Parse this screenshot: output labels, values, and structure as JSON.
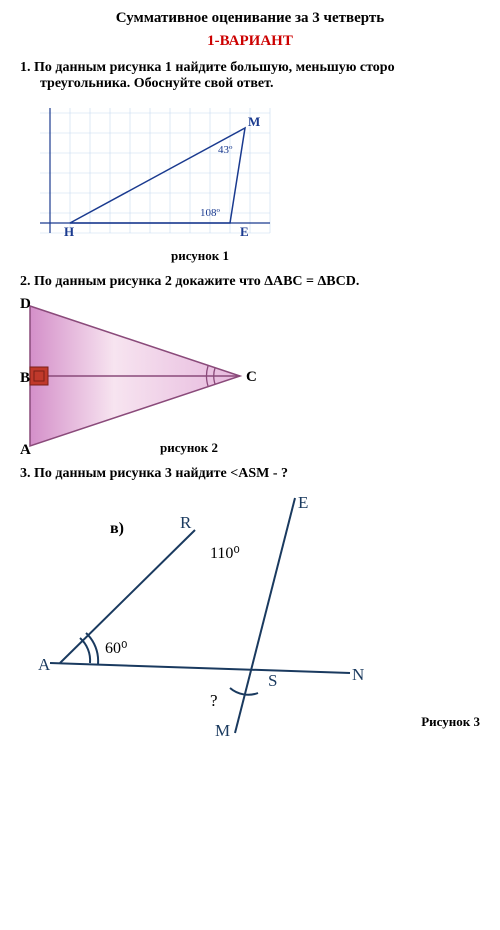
{
  "header": {
    "title": "Суммативное оценивание за 3 четверть",
    "variant": "1-ВАРИАНТ",
    "variant_color": "#cc0000"
  },
  "q1": {
    "text": "1.  По данным рисунка 1 найдите большую, меньшую сторо треугольника.  Обоснуйте свой ответ.",
    "caption": "рисунок 1",
    "labels": {
      "H": "H",
      "E": "E",
      "M": "M",
      "angM": "43º",
      "angE": "108º"
    },
    "colors": {
      "grid": "#c7d9f0",
      "triangle": "#1a3a8f",
      "axis": "#1a3a8f"
    }
  },
  "q2": {
    "text": "2.  По данным рисунка 2 докажите что ΔABC = ΔBCD.",
    "caption": "рисунок 2",
    "labels": {
      "A": "A",
      "B": "B",
      "C": "C",
      "D": "D"
    },
    "colors": {
      "fill_light": "#f7e4f0",
      "fill_mid": "#e6b8dd",
      "fill_dark": "#d48fc9",
      "stroke": "#8a4a7a",
      "square": "#c0392b"
    }
  },
  "q3": {
    "text": "3.  По данным рисунка 3 найдите <ASM - ?",
    "caption": "Рисунок 3",
    "sublabel": "в)",
    "labels": {
      "A": "A",
      "R": "R",
      "E": "E",
      "S": "S",
      "N": "N",
      "M": "M",
      "ang110": "110⁰",
      "ang60": "60⁰",
      "q": "?"
    },
    "colors": {
      "line": "#1a3a5f"
    }
  }
}
